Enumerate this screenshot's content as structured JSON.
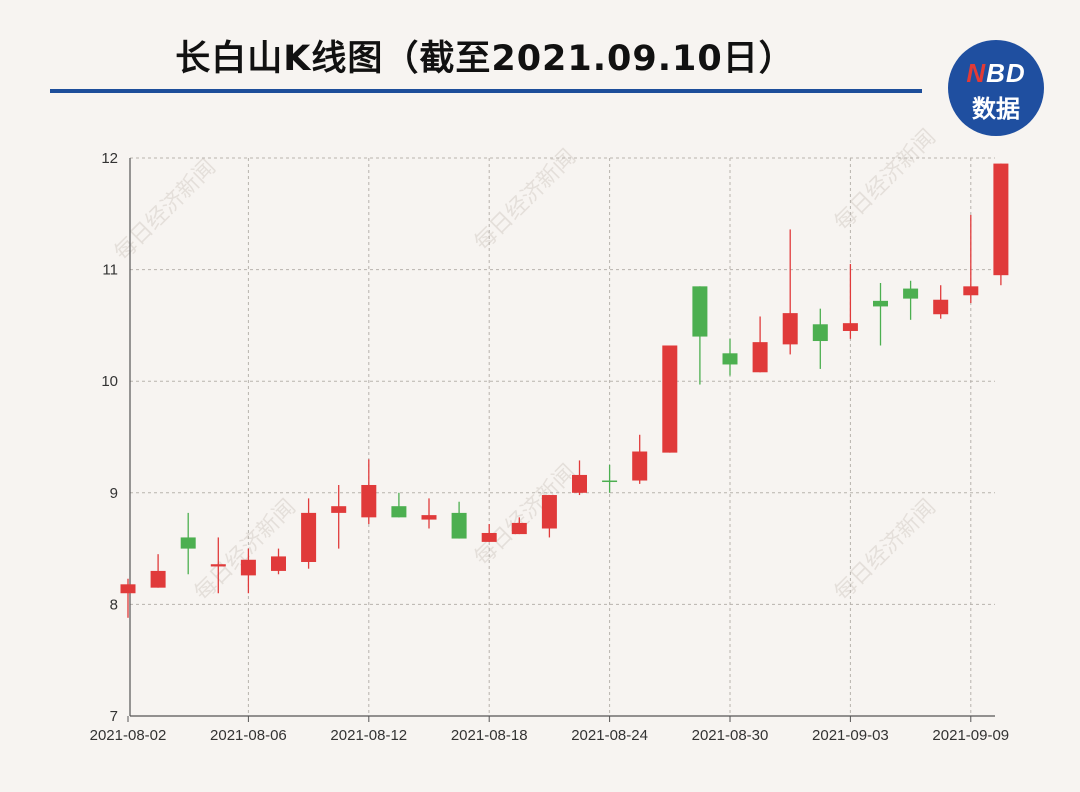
{
  "title": "长白山K线图（截至2021.09.10日）",
  "logo": {
    "line1_n": "N",
    "line1_rest": "BD",
    "line2": "数据"
  },
  "watermark": "每日经济新闻",
  "colors": {
    "up": "#e03a3a",
    "down": "#4caf50",
    "accent": "#1d4e9a",
    "grid": "#b8b3ad"
  },
  "chart_data": {
    "type": "candlestick",
    "ylim": [
      7,
      12
    ],
    "yticks": [
      7,
      8,
      9,
      10,
      11,
      12
    ],
    "grid": true,
    "x_tick_labels": [
      "2021-08-02",
      "2021-08-06",
      "2021-08-12",
      "2021-08-18",
      "2021-08-24",
      "2021-08-30",
      "2021-09-03",
      "2021-09-09"
    ],
    "candles": [
      {
        "date": "2021-08-02",
        "open": 8.1,
        "close": 8.18,
        "high": 8.23,
        "low": 7.88
      },
      {
        "date": "2021-08-03",
        "open": 8.15,
        "close": 8.3,
        "high": 8.45,
        "low": 8.15
      },
      {
        "date": "2021-08-04",
        "open": 8.6,
        "close": 8.5,
        "high": 8.82,
        "low": 8.27
      },
      {
        "date": "2021-08-05",
        "open": 8.34,
        "close": 8.36,
        "high": 8.6,
        "low": 8.1
      },
      {
        "date": "2021-08-06",
        "open": 8.26,
        "close": 8.4,
        "high": 8.5,
        "low": 8.1
      },
      {
        "date": "2021-08-09",
        "open": 8.3,
        "close": 8.43,
        "high": 8.5,
        "low": 8.27
      },
      {
        "date": "2021-08-10",
        "open": 8.38,
        "close": 8.82,
        "high": 8.95,
        "low": 8.32
      },
      {
        "date": "2021-08-11",
        "open": 8.82,
        "close": 8.88,
        "high": 9.07,
        "low": 8.5
      },
      {
        "date": "2021-08-12",
        "open": 8.78,
        "close": 9.07,
        "high": 9.3,
        "low": 8.72
      },
      {
        "date": "2021-08-13",
        "open": 8.88,
        "close": 8.78,
        "high": 9.0,
        "low": 8.78
      },
      {
        "date": "2021-08-16",
        "open": 8.76,
        "close": 8.8,
        "high": 8.95,
        "low": 8.68
      },
      {
        "date": "2021-08-17",
        "open": 8.82,
        "close": 8.59,
        "high": 8.92,
        "low": 8.59
      },
      {
        "date": "2021-08-18",
        "open": 8.56,
        "close": 8.64,
        "high": 8.72,
        "low": 8.56
      },
      {
        "date": "2021-08-19",
        "open": 8.63,
        "close": 8.73,
        "high": 8.78,
        "low": 8.63
      },
      {
        "date": "2021-08-20",
        "open": 8.68,
        "close": 8.98,
        "high": 8.98,
        "low": 8.6
      },
      {
        "date": "2021-08-23",
        "open": 9.0,
        "close": 9.16,
        "high": 9.29,
        "low": 8.98
      },
      {
        "date": "2021-08-24",
        "open": 9.11,
        "close": 9.1,
        "high": 9.25,
        "low": 9.0
      },
      {
        "date": "2021-08-25",
        "open": 9.11,
        "close": 9.37,
        "high": 9.52,
        "low": 9.08
      },
      {
        "date": "2021-08-26",
        "open": 9.36,
        "close": 10.32,
        "high": 10.32,
        "low": 9.36
      },
      {
        "date": "2021-08-27",
        "open": 10.85,
        "close": 10.4,
        "high": 10.85,
        "low": 9.97
      },
      {
        "date": "2021-08-30",
        "open": 10.25,
        "close": 10.15,
        "high": 10.38,
        "low": 10.05
      },
      {
        "date": "2021-08-31",
        "open": 10.08,
        "close": 10.35,
        "high": 10.58,
        "low": 10.08
      },
      {
        "date": "2021-09-01",
        "open": 10.33,
        "close": 10.61,
        "high": 11.36,
        "low": 10.24
      },
      {
        "date": "2021-09-02",
        "open": 10.51,
        "close": 10.36,
        "high": 10.65,
        "low": 10.11
      },
      {
        "date": "2021-09-03",
        "open": 10.45,
        "close": 10.52,
        "high": 11.05,
        "low": 10.38
      },
      {
        "date": "2021-09-06",
        "open": 10.72,
        "close": 10.67,
        "high": 10.88,
        "low": 10.32
      },
      {
        "date": "2021-09-07",
        "open": 10.83,
        "close": 10.74,
        "high": 10.9,
        "low": 10.55
      },
      {
        "date": "2021-09-08",
        "open": 10.6,
        "close": 10.73,
        "high": 10.86,
        "low": 10.56
      },
      {
        "date": "2021-09-09",
        "open": 10.77,
        "close": 10.85,
        "high": 11.49,
        "low": 10.7
      },
      {
        "date": "2021-09-10",
        "open": 10.95,
        "close": 11.95,
        "high": 11.95,
        "low": 10.86
      }
    ]
  }
}
